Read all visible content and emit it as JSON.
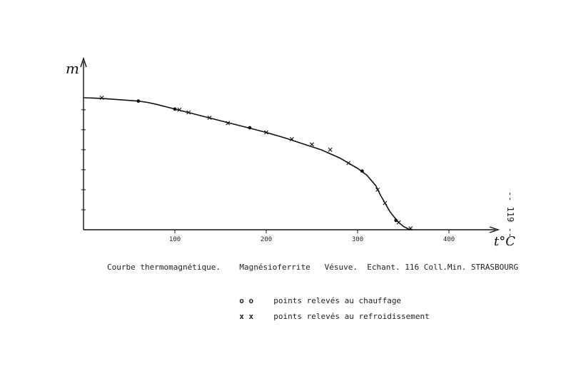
{
  "chart_data": {
    "type": "line",
    "ylabel": "m",
    "xlabel": "t°C",
    "xlim": [
      0,
      445
    ],
    "ylim": [
      0,
      1.1
    ],
    "x_ticks": [
      100,
      200,
      300,
      400
    ],
    "x_tick_labels": [
      "100",
      "200",
      "300",
      "400"
    ],
    "y_ticks": [
      0.15,
      0.3,
      0.45,
      0.6,
      0.75,
      0.9
    ],
    "curve": {
      "x": [
        0,
        20,
        40,
        60,
        70,
        80,
        100,
        120,
        140,
        160,
        180,
        200,
        220,
        240,
        260,
        280,
        300,
        310,
        320,
        325,
        330,
        335,
        340,
        345,
        350,
        355,
        358,
        360
      ],
      "y": [
        0.99,
        0.985,
        0.975,
        0.965,
        0.955,
        0.94,
        0.905,
        0.87,
        0.835,
        0.8,
        0.765,
        0.73,
        0.69,
        0.645,
        0.6,
        0.54,
        0.46,
        0.41,
        0.33,
        0.26,
        0.2,
        0.14,
        0.095,
        0.055,
        0.025,
        0.008,
        0.002,
        0.0
      ]
    },
    "series": [
      {
        "name": "points relevés au chauffage",
        "marker": "circle",
        "x": [
          60,
          100,
          182,
          305,
          342
        ],
        "y": [
          0.965,
          0.905,
          0.765,
          0.44,
          0.07
        ]
      },
      {
        "name": "points relevés au refroidissement",
        "marker": "cross",
        "x": [
          20,
          105,
          115,
          138,
          158,
          200,
          228,
          250,
          270,
          290,
          322,
          330,
          345,
          358
        ],
        "y": [
          0.99,
          0.9,
          0.88,
          0.84,
          0.8,
          0.73,
          0.68,
          0.64,
          0.6,
          0.5,
          0.3,
          0.2,
          0.055,
          0.01
        ]
      }
    ]
  },
  "caption": "Courbe thermomagnétique.    Magnésioferrite   Vésuve.  Echant. 116 Coll.Min. STRASBOURG",
  "legend": {
    "heating_symbol": "o o",
    "heating_label": "points relevés au chauffage",
    "cooling_symbol": "x x",
    "cooling_label": "points relevés au refroidissement"
  },
  "page_number": "-- 119 --"
}
